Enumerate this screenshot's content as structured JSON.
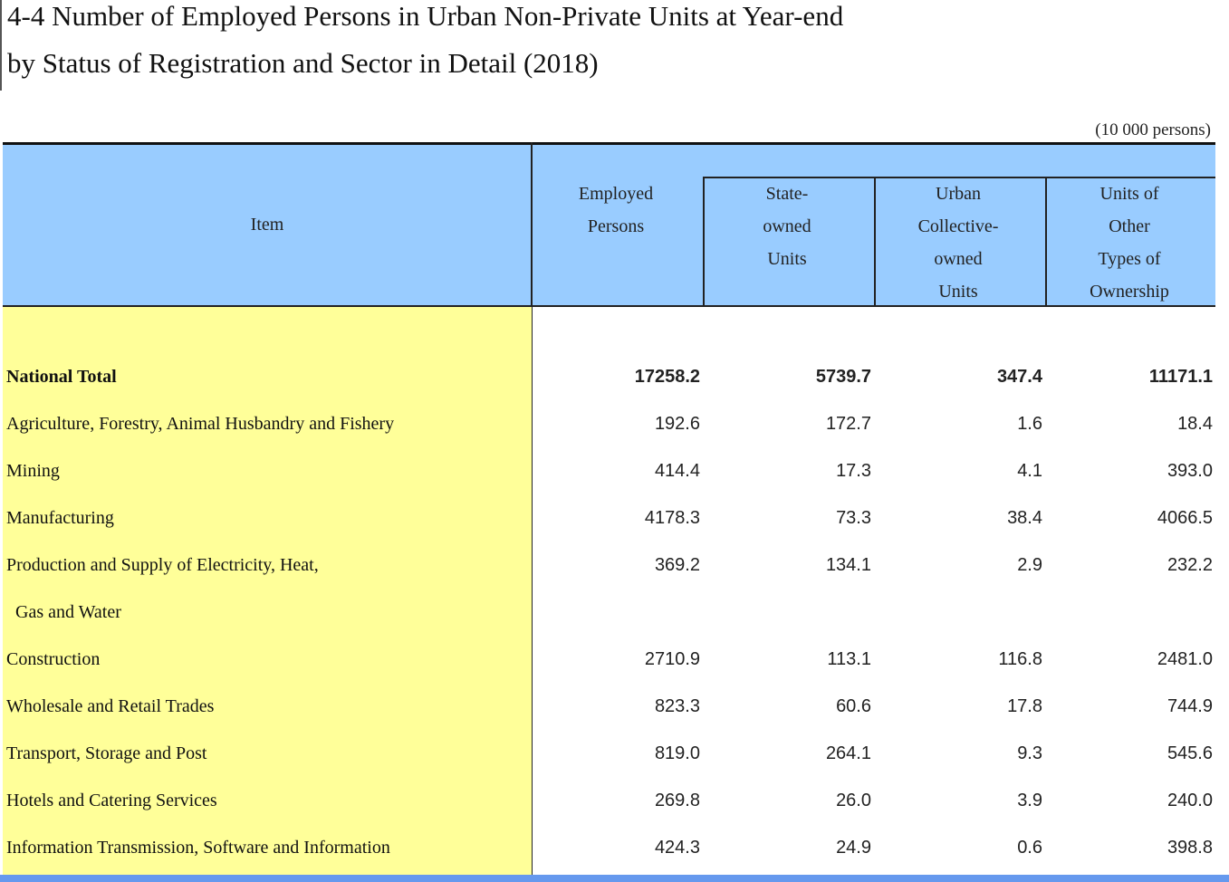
{
  "title": {
    "line1": "4-4  Number of Employed Persons in Urban Non-Private Units at Year-end",
    "line2": "by Status of Registration and Sector in Detail (2018)"
  },
  "unit": "(10 000 persons)",
  "header": {
    "item": "Item",
    "employed": [
      "Employed",
      "Persons"
    ],
    "state": [
      "State-",
      "owned",
      "Units"
    ],
    "collective": [
      "Urban",
      "Collective-",
      "owned",
      "Units"
    ],
    "other": [
      "Units of",
      "Other",
      "Types of",
      "Ownership"
    ]
  },
  "rows": [
    {
      "label": "National Total",
      "values": [
        "17258.2",
        "5739.7",
        "347.4",
        "11171.1"
      ]
    },
    {
      "label": "Agriculture, Forestry, Animal Husbandry and Fishery",
      "values": [
        "192.6",
        "172.7",
        "1.6",
        "18.4"
      ]
    },
    {
      "label": "Mining",
      "values": [
        "414.4",
        "17.3",
        "4.1",
        "393.0"
      ]
    },
    {
      "label": "Manufacturing",
      "values": [
        "4178.3",
        "73.3",
        "38.4",
        "4066.5"
      ]
    },
    {
      "label": "Production and Supply of Electricity, Heat,",
      "values": [
        "369.2",
        "134.1",
        "2.9",
        "232.2"
      ]
    },
    {
      "label": "Gas and Water",
      "values": [
        "",
        "",
        "",
        ""
      ]
    },
    {
      "label": "Construction",
      "values": [
        "2710.9",
        "113.1",
        "116.8",
        "2481.0"
      ]
    },
    {
      "label": "Wholesale and Retail Trades",
      "values": [
        "823.3",
        "60.6",
        "17.8",
        "744.9"
      ]
    },
    {
      "label": "Transport, Storage and Post",
      "values": [
        "819.0",
        "264.1",
        "9.3",
        "545.6"
      ]
    },
    {
      "label": "Hotels and Catering Services",
      "values": [
        "269.8",
        "26.0",
        "3.9",
        "240.0"
      ]
    },
    {
      "label": "Information Transmission, Software and Information",
      "values": [
        "424.3",
        "24.9",
        "0.6",
        "398.8"
      ]
    }
  ]
}
